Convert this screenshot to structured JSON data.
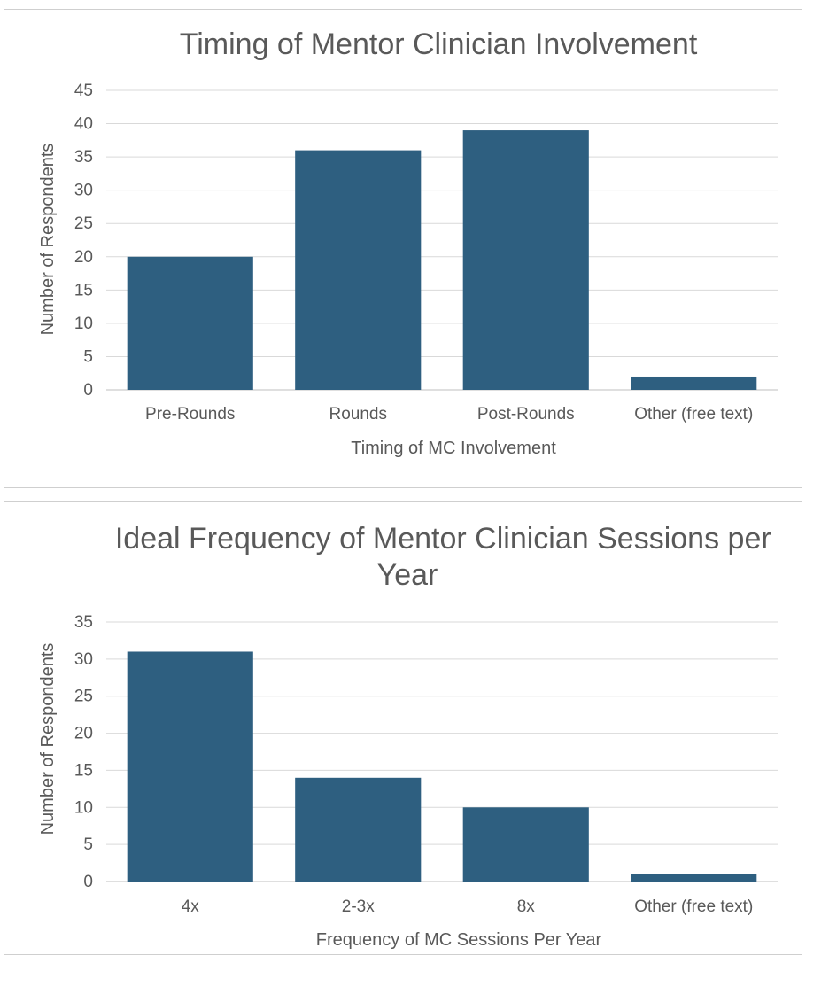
{
  "chart_data": [
    {
      "type": "bar",
      "title": "Timing of Mentor Clinician Involvement",
      "categories": [
        "Pre-Rounds",
        "Rounds",
        "Post-Rounds",
        "Other (free text)"
      ],
      "values": [
        20,
        36,
        39,
        2
      ],
      "xlabel": "Timing of MC Involvement",
      "ylabel": "Number of Respondents",
      "ylim": [
        0,
        45
      ],
      "yticks": [
        "0",
        "5",
        "10",
        "15",
        "20",
        "25",
        "30",
        "35",
        "40",
        "45"
      ],
      "color": "#2e5f80",
      "grid": true,
      "legend": "none"
    },
    {
      "type": "bar",
      "title": "Ideal Frequency of Mentor Clinician Sessions per Year",
      "title_lines": [
        "Ideal Frequency of Mentor Clinician Sessions per",
        "Year"
      ],
      "categories": [
        "4x",
        "2-3x",
        "8x",
        "Other (free text)"
      ],
      "values": [
        31,
        14,
        10,
        1
      ],
      "xlabel": "Frequency of MC Sessions Per Year",
      "ylabel": "Number of Respondents",
      "ylim": [
        0,
        35
      ],
      "yticks": [
        "0",
        "5",
        "10",
        "15",
        "20",
        "25",
        "30",
        "35"
      ],
      "color": "#2e5f80",
      "grid": true,
      "legend": "none"
    }
  ]
}
